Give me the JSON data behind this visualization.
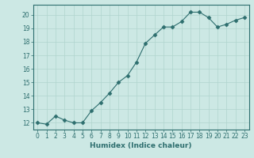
{
  "x": [
    0,
    1,
    2,
    3,
    4,
    5,
    6,
    7,
    8,
    9,
    10,
    11,
    12,
    13,
    14,
    15,
    16,
    17,
    18,
    19,
    20,
    21,
    22,
    23
  ],
  "y": [
    12.0,
    11.9,
    12.5,
    12.2,
    12.0,
    12.0,
    12.9,
    13.5,
    14.2,
    15.0,
    15.5,
    16.5,
    17.9,
    18.5,
    19.1,
    19.1,
    19.5,
    20.2,
    20.2,
    19.8,
    19.1,
    19.3,
    19.6,
    19.8
  ],
  "xlabel": "Humidex (Indice chaleur)",
  "xlim": [
    -0.5,
    23.5
  ],
  "ylim": [
    11.5,
    20.75
  ],
  "yticks": [
    12,
    13,
    14,
    15,
    16,
    17,
    18,
    19,
    20
  ],
  "xticks": [
    0,
    1,
    2,
    3,
    4,
    5,
    6,
    7,
    8,
    9,
    10,
    11,
    12,
    13,
    14,
    15,
    16,
    17,
    18,
    19,
    20,
    21,
    22,
    23
  ],
  "line_color": "#2d6e6e",
  "marker": "D",
  "marker_size": 2.5,
  "bg_color": "#cce8e4",
  "grid_color": "#b0d4ce",
  "tick_label_fontsize": 5.5,
  "xlabel_fontsize": 6.5,
  "spine_color": "#2d6e6e"
}
